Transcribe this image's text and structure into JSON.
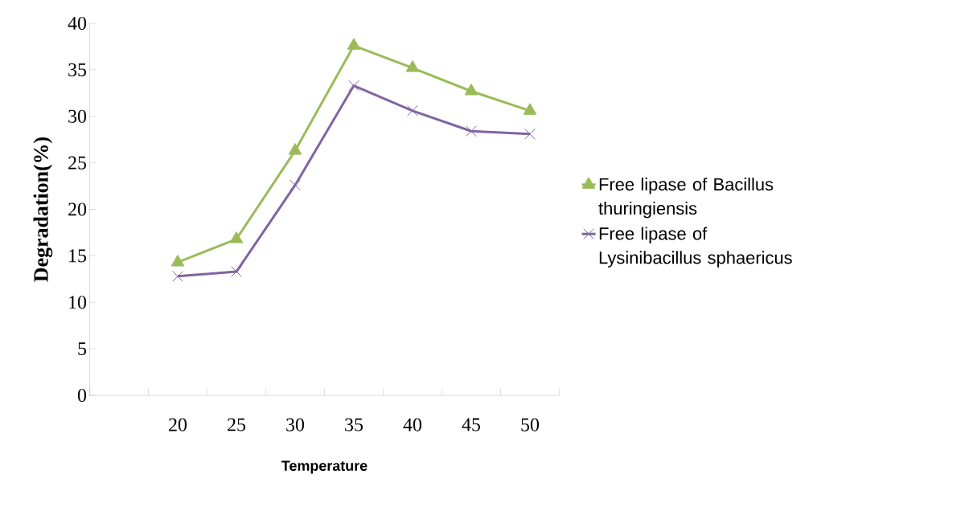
{
  "chart_data": {
    "type": "line",
    "xlabel": "Temperature",
    "ylabel": "Degradation(%)",
    "categories": [
      null,
      "20",
      "25",
      "30",
      "35",
      "40",
      "45",
      "50"
    ],
    "series": [
      {
        "name": "Free lipase of Bacillus thuringiensis",
        "color": "#9bbb59",
        "marker": "triangle",
        "values": [
          null,
          14.3,
          16.8,
          26.3,
          37.6,
          35.2,
          32.7,
          30.6
        ]
      },
      {
        "name": "Free lipase of Lysinibacillus sphaericus",
        "color": "#8064a2",
        "marker": "cross",
        "values": [
          null,
          12.8,
          13.3,
          22.6,
          33.3,
          30.6,
          28.4,
          28.1
        ]
      }
    ],
    "ylim": [
      0,
      40
    ],
    "yticks": [
      0,
      5,
      10,
      15,
      20,
      25,
      30,
      35,
      40
    ],
    "legend": "right",
    "grid": false
  }
}
